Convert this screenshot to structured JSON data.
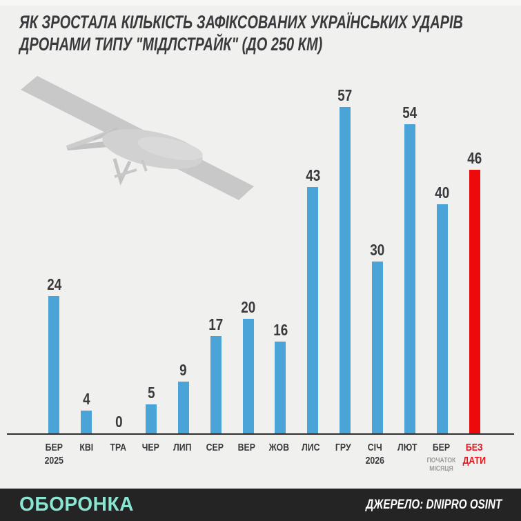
{
  "title": {
    "line1": "ЯК ЗРОСТАЛА КІЛЬКІСТЬ ЗАФІКСОВАНИХ УКРАЇНСЬКИХ УДАРІВ",
    "line2": "ДРОНАМИ ТИПУ \"МІДЛСТРАЙК\" (ДО 250 КМ)"
  },
  "images": {
    "drone": "gray-3d-render-fixed-wing-strike-drone"
  },
  "chart_data": {
    "type": "bar",
    "title": "ЯК ЗРОСТАЛА КІЛЬКІСТЬ ЗАФІКСОВАНИХ УКРАЇНСЬКИХ УДАРІВ ДРОНАМИ ТИПУ \"МІДЛСТРАЙК\" (ДО 250 КМ)",
    "categories": [
      "БЕР 2025",
      "КВІ",
      "ТРА",
      "ЧЕР",
      "ЛИП",
      "СЕР",
      "ВЕР",
      "ЖОВ",
      "ЛИС",
      "ГРУ",
      "СІЧ 2026",
      "ЛЮТ",
      "БЕР (ПОЧАТОК МІСЯЦЯ)",
      "БЕЗ ДАТИ"
    ],
    "values": [
      24,
      4,
      0,
      5,
      9,
      17,
      20,
      16,
      43,
      57,
      30,
      54,
      40,
      46
    ],
    "ylim": [
      0,
      60
    ],
    "grid": false,
    "legend": false,
    "bar_color": "#4aa4d8",
    "highlight_color": "#ec0a0a",
    "value_label_color": "#3a3a3c",
    "bars": [
      {
        "label": "БЕР",
        "sub": "2025",
        "sub_style": "year",
        "value": 24
      },
      {
        "label": "КВІ",
        "value": 4
      },
      {
        "label": "ТРА",
        "value": 0
      },
      {
        "label": "ЧЕР",
        "value": 5
      },
      {
        "label": "ЛИП",
        "value": 9
      },
      {
        "label": "СЕР",
        "value": 17
      },
      {
        "label": "ВЕР",
        "value": 20
      },
      {
        "label": "ЖОВ",
        "value": 16
      },
      {
        "label": "ЛИС",
        "value": 43
      },
      {
        "label": "ГРУ",
        "value": 57
      },
      {
        "label": "СІЧ",
        "sub": "2026",
        "sub_style": "year",
        "value": 30
      },
      {
        "label": "ЛЮТ",
        "value": 54
      },
      {
        "label": "БЕР",
        "sub": "ПОЧАТОК МІСЯЦЯ",
        "sub_style": "note",
        "value": 40
      },
      {
        "label": "БЕЗ",
        "label_color": "#e8151c",
        "sub": "ДАТИ",
        "sub_style": "red",
        "value": 46,
        "highlight": true
      }
    ]
  },
  "footer": {
    "brand": "ОБОРОНКА",
    "source": "ДЖЕРЕЛО: DNIPRO OSINT"
  },
  "colors": {
    "background": "#f0f0ef",
    "title_text": "#3a3a3c",
    "axis_line": "#2f2f2f",
    "muted_label": "#9b9b9b",
    "red_label": "#e8151c",
    "footer_bg": "#242424",
    "brand_text": "#8ae5d2",
    "source_text": "#ffffff"
  }
}
